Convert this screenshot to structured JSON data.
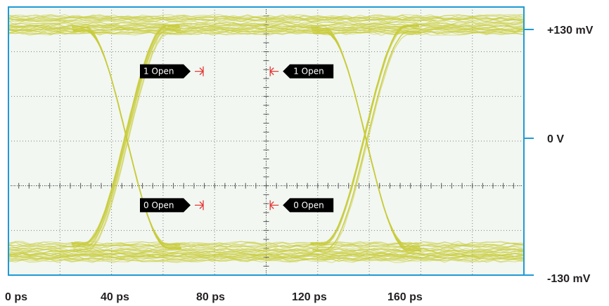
{
  "chart_data": {
    "type": "eye-diagram",
    "x_unit": "ps",
    "x_ticks": [
      {
        "value": 0,
        "label": "0 ps"
      },
      {
        "value": 40,
        "label": "40 ps"
      },
      {
        "value": 80,
        "label": "80 ps"
      },
      {
        "value": 120,
        "label": "120 ps"
      },
      {
        "value": 160,
        "label": "160 ps"
      }
    ],
    "y_ticks": [
      {
        "value": 130,
        "label": "+130 mV"
      },
      {
        "value": 0,
        "label": "0 V"
      },
      {
        "value": -130,
        "label": "-130 mV"
      }
    ],
    "xlim": [
      0,
      200
    ],
    "ylim": [
      -130,
      130
    ],
    "levels_mV": {
      "one": 130,
      "zero": -130
    },
    "crossings_ps": [
      48,
      148
    ],
    "grid": true,
    "colors": {
      "trace": "#c8cc3a",
      "background": "#f2f7f2",
      "frame": "#1f9ad6",
      "grid": "#7f7f7f",
      "marker_arrow": "#e53935",
      "marker_label_bg": "#000000"
    },
    "markers": [
      {
        "id": "one-open-left",
        "label": "1 Open",
        "x_ps": 80,
        "y_mV": 80,
        "direction": "right"
      },
      {
        "id": "one-open-right",
        "label": "1 Open",
        "x_ps": 108,
        "y_mV": 80,
        "direction": "left"
      },
      {
        "id": "zero-open-left",
        "label": "0 Open",
        "x_ps": 80,
        "y_mV": -80,
        "direction": "right"
      },
      {
        "id": "zero-open-right",
        "label": "0 Open",
        "x_ps": 108,
        "y_mV": -80,
        "direction": "left"
      }
    ]
  }
}
